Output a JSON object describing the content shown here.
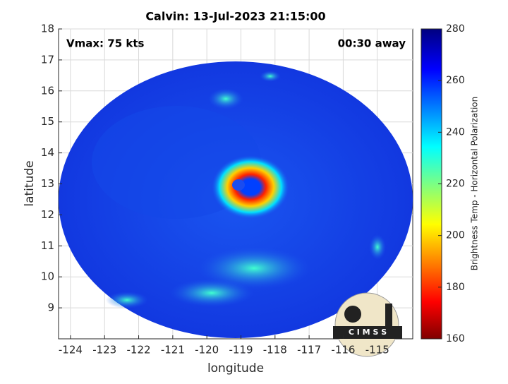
{
  "chart_data": {
    "type": "image",
    "title": "Calvin: 13-Jul-2023 21:15:00",
    "annotations": [
      "Vmax: 75 kts",
      "00:30 away"
    ],
    "xlabel": "longitude",
    "ylabel": "latitude",
    "xlim": [
      -124.35,
      -113.96
    ],
    "xticks": [
      -124,
      -123,
      -122,
      -121,
      -120,
      -119,
      -118,
      -117,
      -116,
      -115
    ],
    "ylim": [
      8.0,
      18
    ],
    "yticks": [
      9,
      10,
      11,
      12,
      13,
      14,
      15,
      16,
      17,
      18
    ],
    "grid": true,
    "colorbar": {
      "label": "Brightness Temp - Horizontal Polarization",
      "lim": [
        160,
        280
      ],
      "ticks": [
        160,
        180,
        200,
        220,
        240,
        260,
        280
      ]
    },
    "logo_text": "C I M S S"
  }
}
